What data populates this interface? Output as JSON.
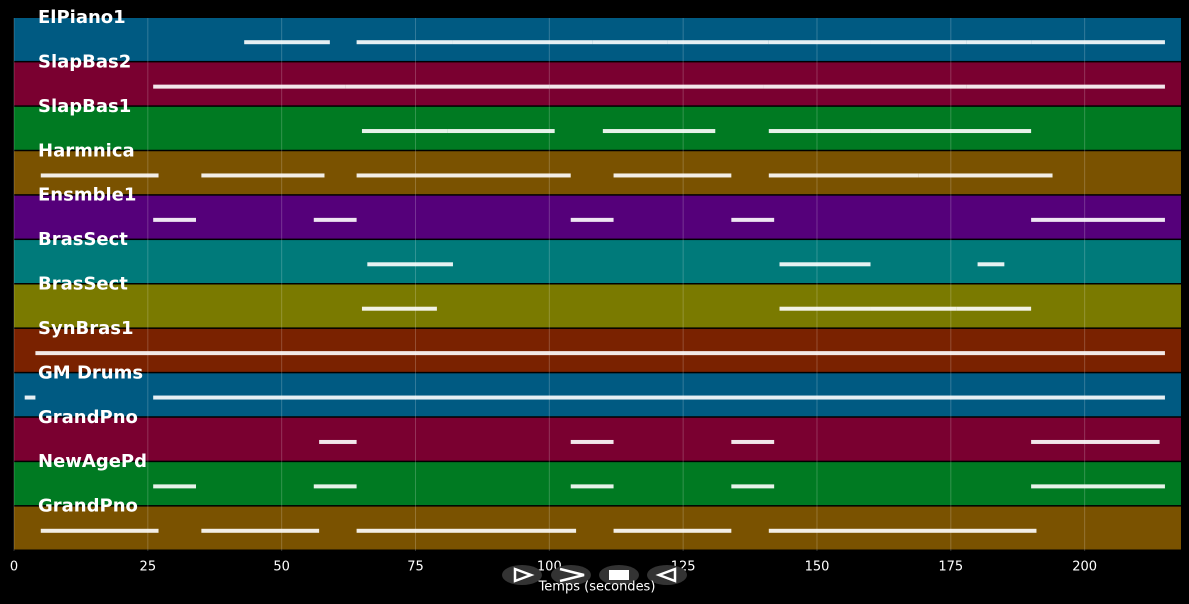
{
  "chart_data": {
    "type": "timeline",
    "x_label": "Temps (secondes)",
    "xlim": [
      0,
      218
    ],
    "xticks": [
      0,
      25,
      50,
      75,
      100,
      125,
      150,
      175,
      200
    ],
    "grid": true,
    "tracks": [
      {
        "name": "ElPiano1",
        "color": "#005a82",
        "segments": [
          [
            43,
            59
          ],
          [
            64,
            82
          ],
          [
            82,
            108
          ],
          [
            108,
            122
          ],
          [
            122,
            141
          ],
          [
            141,
            160
          ],
          [
            160,
            178
          ],
          [
            178,
            190
          ],
          [
            190,
            215
          ]
        ]
      },
      {
        "name": "SlapBas2",
        "color": "#7a0030",
        "segments": [
          [
            26,
            62
          ],
          [
            62,
            100
          ],
          [
            100,
            140
          ],
          [
            140,
            178
          ],
          [
            178,
            215
          ]
        ]
      },
      {
        "name": "SlapBas1",
        "color": "#007a22",
        "segments": [
          [
            65,
            81
          ],
          [
            81,
            101
          ],
          [
            110,
            131
          ],
          [
            141,
            160
          ],
          [
            160,
            190
          ]
        ]
      },
      {
        "name": "Harmnica",
        "color": "#7a5200",
        "segments": [
          [
            5,
            27
          ],
          [
            35,
            58
          ],
          [
            64,
            104
          ],
          [
            112,
            134
          ],
          [
            141,
            169
          ],
          [
            169,
            194
          ]
        ]
      },
      {
        "name": "Ensmble1",
        "color": "#55007a",
        "segments": [
          [
            26,
            34
          ],
          [
            56,
            64
          ],
          [
            104,
            112
          ],
          [
            134,
            142
          ],
          [
            190,
            215
          ]
        ]
      },
      {
        "name": "BrasSect",
        "color": "#007a7a",
        "segments": [
          [
            66,
            82
          ],
          [
            143,
            160
          ],
          [
            180,
            185
          ]
        ]
      },
      {
        "name": "BrasSect",
        "color": "#7a7a00",
        "segments": [
          [
            65,
            79
          ],
          [
            143,
            160
          ],
          [
            160,
            176
          ],
          [
            176,
            190
          ]
        ]
      },
      {
        "name": "SynBras1",
        "color": "#7a2200",
        "segments": [
          [
            4,
            215
          ]
        ]
      },
      {
        "name": "GM Drums",
        "color": "#005a82",
        "segments": [
          [
            2,
            4
          ],
          [
            26,
            215
          ]
        ]
      },
      {
        "name": "GrandPno",
        "color": "#7a0030",
        "segments": [
          [
            57,
            64
          ],
          [
            104,
            112
          ],
          [
            134,
            142
          ],
          [
            190,
            214
          ]
        ]
      },
      {
        "name": "NewAgePd",
        "color": "#007a22",
        "segments": [
          [
            26,
            34
          ],
          [
            56,
            64
          ],
          [
            104,
            112
          ],
          [
            134,
            142
          ],
          [
            190,
            215
          ]
        ]
      },
      {
        "name": "GrandPno",
        "color": "#7a5200",
        "segments": [
          [
            5,
            27
          ],
          [
            35,
            57
          ],
          [
            64,
            105
          ],
          [
            112,
            134
          ],
          [
            141,
            191
          ]
        ]
      }
    ]
  }
}
